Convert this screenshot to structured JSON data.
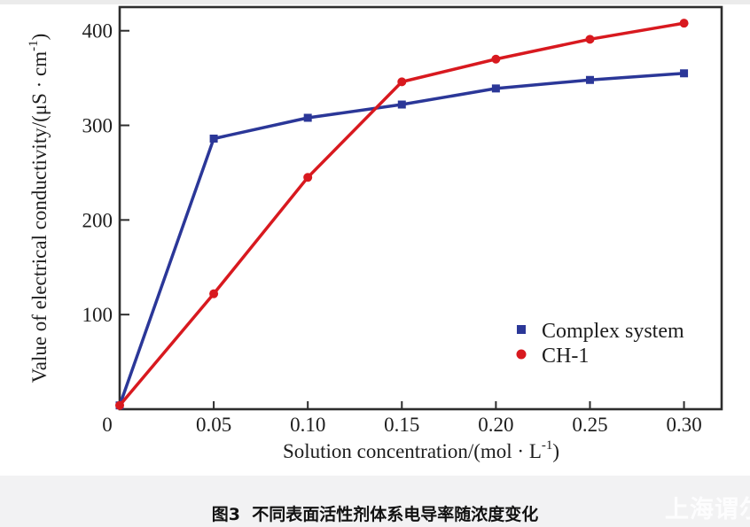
{
  "figure": {
    "caption": "图3  不同表面活性剂体系电导率随浓度变化",
    "watermark": "上海谓尔"
  },
  "chart_data": {
    "type": "line",
    "title": "",
    "xlabel_main": "Solution concentration/(mol · L",
    "xlabel_sup": "-1",
    "xlabel_end": ")",
    "ylabel_main": "Value of electrical conductivity/(μS · cm",
    "ylabel_sup": "-1",
    "ylabel_end": ")",
    "x": [
      0,
      0.05,
      0.1,
      0.15,
      0.2,
      0.25,
      0.3
    ],
    "x_tick_labels": [
      "0",
      "0.05",
      "0.10",
      "0.15",
      "0.20",
      "0.25",
      "0.30"
    ],
    "y_tick_values": [
      100,
      200,
      300,
      400
    ],
    "y_tick_labels": [
      "100",
      "200",
      "300",
      "400"
    ],
    "xlim": [
      0,
      0.32
    ],
    "ylim": [
      0,
      425
    ],
    "grid": false,
    "legend_position": "inside lower-right",
    "frame_color": "#2d2d2d",
    "series": [
      {
        "name": "Complex system",
        "color": "#2b3798",
        "marker": "square",
        "values": [
          4,
          286,
          308,
          322,
          339,
          348,
          355
        ]
      },
      {
        "name": "CH-1",
        "color": "#d8191f",
        "marker": "circle",
        "values": [
          4,
          122,
          245,
          346,
          370,
          391,
          408
        ]
      }
    ]
  }
}
